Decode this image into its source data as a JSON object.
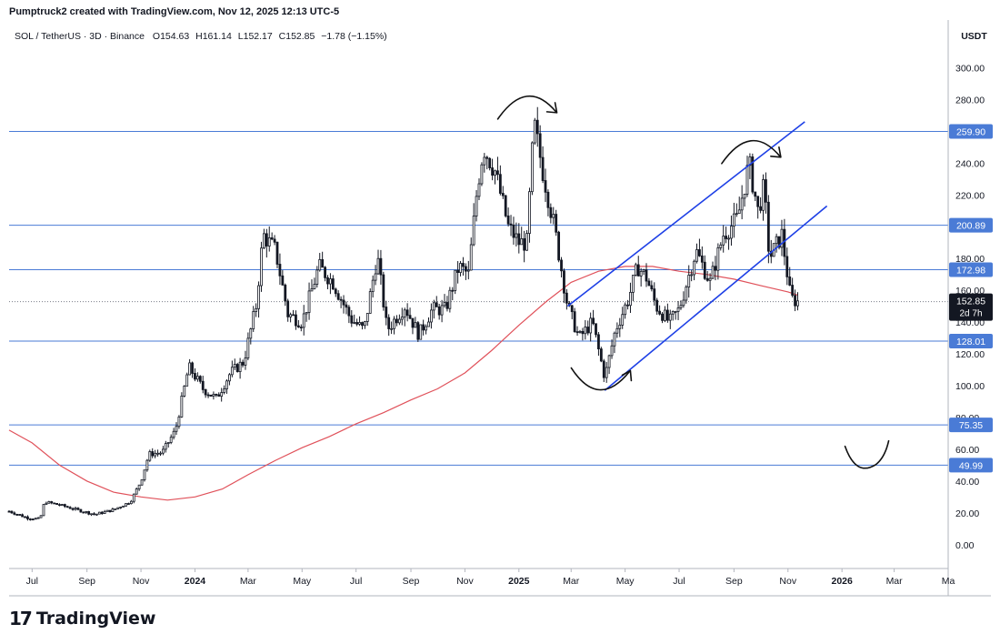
{
  "header": {
    "credit": "Pumptruck2 created with TradingView.com, Nov 12, 2025 12:13 UTC-5"
  },
  "legend": {
    "symbol": "SOL / TetherUS · 3D · Binance",
    "o_label": "O",
    "o": "154.63",
    "h_label": "H",
    "h": "161.14",
    "l_label": "L",
    "l": "152.17",
    "c_label": "C",
    "c": "152.85",
    "change": "−1.78 (−1.15%)"
  },
  "footer": {
    "logo_mark": "17",
    "logo_text": "TradingView"
  },
  "colors": {
    "candle": "#131722",
    "level_line": "#4a7bd6",
    "channel": "#1e40e6",
    "ma": "#e0515a",
    "last_price_label": "#131722",
    "level_label_bg": "#4a7bd6"
  },
  "chart_data": {
    "type": "candlestick",
    "currency": "USDT",
    "ylim": [
      -15,
      330
    ],
    "y_ticks": [
      0,
      20,
      40,
      60,
      80,
      100,
      120,
      140,
      160,
      180,
      200,
      220,
      240,
      260,
      280,
      300
    ],
    "y_tick_labels": [
      "0.00",
      "20.00",
      "40.00",
      "60.00",
      "80.00",
      "100.00",
      "120.00",
      "140.00",
      "160.00",
      "180.00",
      "200.00",
      "220.00",
      "240.00",
      "260.00",
      "280.00",
      "300.00"
    ],
    "x_range": [
      "2023-06-05",
      "2026-05-01"
    ],
    "x_ticks": [
      {
        "date": "2023-07-01",
        "label": "Jul",
        "bold": false
      },
      {
        "date": "2023-09-01",
        "label": "Sep",
        "bold": false
      },
      {
        "date": "2023-11-01",
        "label": "Nov",
        "bold": false
      },
      {
        "date": "2024-01-01",
        "label": "2024",
        "bold": true
      },
      {
        "date": "2024-03-01",
        "label": "Mar",
        "bold": false
      },
      {
        "date": "2024-05-01",
        "label": "May",
        "bold": false
      },
      {
        "date": "2024-07-01",
        "label": "Jul",
        "bold": false
      },
      {
        "date": "2024-09-01",
        "label": "Sep",
        "bold": false
      },
      {
        "date": "2024-11-01",
        "label": "Nov",
        "bold": false
      },
      {
        "date": "2025-01-01",
        "label": "2025",
        "bold": true
      },
      {
        "date": "2025-03-01",
        "label": "Mar",
        "bold": false
      },
      {
        "date": "2025-05-01",
        "label": "May",
        "bold": false
      },
      {
        "date": "2025-07-01",
        "label": "Jul",
        "bold": false
      },
      {
        "date": "2025-09-01",
        "label": "Sep",
        "bold": false
      },
      {
        "date": "2025-11-01",
        "label": "Nov",
        "bold": false
      },
      {
        "date": "2026-01-01",
        "label": "2026",
        "bold": true
      },
      {
        "date": "2026-03-01",
        "label": "Mar",
        "bold": false
      },
      {
        "date": "2026-05-01",
        "label": "Ma",
        "bold": false
      }
    ],
    "levels": [
      {
        "value": 259.9,
        "label": "259.90"
      },
      {
        "value": 200.89,
        "label": "200.89"
      },
      {
        "value": 172.98,
        "label": "172.98"
      },
      {
        "value": 128.01,
        "label": "128.01"
      },
      {
        "value": 75.35,
        "label": "75.35"
      },
      {
        "value": 49.99,
        "label": "49.99"
      }
    ],
    "last_price": {
      "value": 152.85,
      "label": "152.85",
      "countdown": "2d 7h"
    },
    "price_path": [
      [
        "2023-06-05",
        21
      ],
      [
        "2023-06-25",
        17
      ],
      [
        "2023-07-10",
        16
      ],
      [
        "2023-07-15",
        27
      ],
      [
        "2023-08-01",
        25
      ],
      [
        "2023-08-20",
        22
      ],
      [
        "2023-09-10",
        19
      ],
      [
        "2023-10-01",
        22
      ],
      [
        "2023-10-20",
        27
      ],
      [
        "2023-11-01",
        40
      ],
      [
        "2023-11-10",
        57
      ],
      [
        "2023-11-25",
        58
      ],
      [
        "2023-12-10",
        72
      ],
      [
        "2023-12-25",
        112
      ],
      [
        "2024-01-10",
        98
      ],
      [
        "2024-01-25",
        92
      ],
      [
        "2024-02-10",
        108
      ],
      [
        "2024-02-25",
        115
      ],
      [
        "2024-03-10",
        150
      ],
      [
        "2024-03-18",
        195
      ],
      [
        "2024-04-01",
        185
      ],
      [
        "2024-04-15",
        145
      ],
      [
        "2024-05-01",
        140
      ],
      [
        "2024-05-20",
        175
      ],
      [
        "2024-06-05",
        165
      ],
      [
        "2024-06-25",
        142
      ],
      [
        "2024-07-10",
        135
      ],
      [
        "2024-07-25",
        182
      ],
      [
        "2024-08-05",
        135
      ],
      [
        "2024-08-25",
        150
      ],
      [
        "2024-09-10",
        132
      ],
      [
        "2024-09-25",
        148
      ],
      [
        "2024-10-10",
        148
      ],
      [
        "2024-10-25",
        175
      ],
      [
        "2024-11-05",
        170
      ],
      [
        "2024-11-15",
        225
      ],
      [
        "2024-11-22",
        250
      ],
      [
        "2024-12-05",
        235
      ],
      [
        "2024-12-20",
        200
      ],
      [
        "2025-01-01",
        190
      ],
      [
        "2025-01-10",
        190
      ],
      [
        "2025-01-18",
        265
      ],
      [
        "2025-01-28",
        235
      ],
      [
        "2025-02-10",
        200
      ],
      [
        "2025-02-25",
        150
      ],
      [
        "2025-03-10",
        130
      ],
      [
        "2025-03-25",
        140
      ],
      [
        "2025-04-08",
        105
      ],
      [
        "2025-04-20",
        135
      ],
      [
        "2025-05-05",
        155
      ],
      [
        "2025-05-15",
        175
      ],
      [
        "2025-05-25",
        168
      ],
      [
        "2025-06-05",
        150
      ],
      [
        "2025-06-20",
        140
      ],
      [
        "2025-07-01",
        148
      ],
      [
        "2025-07-20",
        185
      ],
      [
        "2025-08-05",
        165
      ],
      [
        "2025-08-20",
        195
      ],
      [
        "2025-09-05",
        205
      ],
      [
        "2025-09-18",
        240
      ],
      [
        "2025-09-28",
        210
      ],
      [
        "2025-10-05",
        225
      ],
      [
        "2025-10-11",
        180
      ],
      [
        "2025-10-25",
        195
      ],
      [
        "2025-11-04",
        155
      ],
      [
        "2025-11-12",
        152.85
      ]
    ],
    "moving_average": [
      [
        "2023-06-05",
        72
      ],
      [
        "2023-07-01",
        64
      ],
      [
        "2023-08-01",
        50
      ],
      [
        "2023-09-01",
        40
      ],
      [
        "2023-10-01",
        33
      ],
      [
        "2023-11-01",
        30
      ],
      [
        "2023-12-01",
        28
      ],
      [
        "2024-01-01",
        30
      ],
      [
        "2024-02-01",
        35
      ],
      [
        "2024-03-01",
        44
      ],
      [
        "2024-04-01",
        53
      ],
      [
        "2024-05-01",
        61
      ],
      [
        "2024-06-01",
        68
      ],
      [
        "2024-07-01",
        76
      ],
      [
        "2024-08-01",
        83
      ],
      [
        "2024-09-01",
        91
      ],
      [
        "2024-10-01",
        98
      ],
      [
        "2024-11-01",
        108
      ],
      [
        "2024-12-01",
        122
      ],
      [
        "2025-01-01",
        138
      ],
      [
        "2025-02-01",
        153
      ],
      [
        "2025-03-01",
        165
      ],
      [
        "2025-04-01",
        172
      ],
      [
        "2025-05-01",
        175
      ],
      [
        "2025-06-01",
        175
      ],
      [
        "2025-07-01",
        172
      ],
      [
        "2025-08-01",
        170
      ],
      [
        "2025-09-01",
        167
      ],
      [
        "2025-10-01",
        163
      ],
      [
        "2025-11-01",
        159
      ],
      [
        "2025-11-12",
        157
      ]
    ],
    "channel": {
      "upper": [
        [
          "2025-02-25",
          150
        ],
        [
          "2025-11-20",
          266
        ]
      ],
      "lower": [
        [
          "2025-04-08",
          97
        ],
        [
          "2025-12-15",
          213
        ]
      ]
    },
    "annotations": [
      {
        "shape": "arc-top",
        "at": [
          "2025-01-10",
          278
        ],
        "note": "curved arrow over 2025 top"
      },
      {
        "shape": "arc-top",
        "at": [
          "2025-09-20",
          250
        ],
        "note": "curved arrow over channel top"
      },
      {
        "shape": "arc-bottom",
        "at": [
          "2025-04-01",
          102
        ],
        "note": "curved arrow under April low"
      },
      {
        "shape": "cup",
        "at": [
          "2026-01-25",
          55
        ],
        "note": "hand-drawn bottom curve"
      }
    ]
  }
}
